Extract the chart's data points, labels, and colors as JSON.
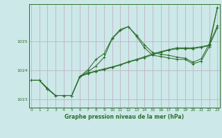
{
  "title": "Graphe pression niveau de la mer (hPa)",
  "bg_color": "#cce8e8",
  "grid_color": "#c0a8c0",
  "line_color": "#2d6e2d",
  "ylim": [
    1022.7,
    1026.3
  ],
  "xlim": [
    -0.3,
    23.3
  ],
  "yticks": [
    1023,
    1024,
    1025
  ],
  "xticks": [
    0,
    1,
    2,
    3,
    4,
    5,
    6,
    7,
    8,
    9,
    10,
    11,
    12,
    13,
    14,
    15,
    16,
    17,
    18,
    19,
    20,
    21,
    22,
    23
  ],
  "series1": {
    "x": [
      0,
      1,
      2,
      3,
      4,
      5,
      6,
      7,
      8,
      9,
      10,
      11,
      12,
      13,
      14,
      15,
      16,
      17,
      18,
      19,
      20,
      21,
      22,
      23
    ],
    "y": [
      1023.65,
      1023.65,
      1023.35,
      1023.12,
      1023.12,
      1023.12,
      1023.78,
      1023.9,
      1023.98,
      1024.05,
      1024.12,
      1024.2,
      1024.3,
      1024.38,
      1024.47,
      1024.57,
      1024.65,
      1024.72,
      1024.78,
      1024.78,
      1024.78,
      1024.82,
      1024.88,
      1025.55
    ]
  },
  "series2": {
    "x": [
      0,
      1,
      2,
      3,
      4,
      5,
      6,
      7,
      8,
      9,
      10,
      11,
      12,
      13,
      14,
      15,
      16,
      17,
      18,
      19,
      20,
      21,
      22,
      23
    ],
    "y": [
      1023.65,
      1023.65,
      1023.38,
      1023.12,
      1023.12,
      1023.12,
      1023.78,
      1023.95,
      1024.15,
      1024.45,
      1025.1,
      1025.38,
      1025.52,
      1025.18,
      1024.78,
      1024.52,
      1024.48,
      1024.43,
      1024.38,
      1024.38,
      1024.22,
      1024.32,
      1024.82,
      1026.18
    ]
  },
  "series3": {
    "x": [
      0,
      1,
      2,
      3,
      4,
      5,
      6,
      7,
      8,
      9,
      10,
      11,
      12,
      13,
      14,
      15,
      16,
      17,
      18,
      19,
      20,
      21,
      22,
      23
    ],
    "y": [
      1023.65,
      1023.65,
      1023.35,
      1023.12,
      1023.12,
      1023.12,
      1023.78,
      1023.88,
      1023.96,
      1024.02,
      1024.1,
      1024.18,
      1024.28,
      1024.36,
      1024.44,
      1024.54,
      1024.62,
      1024.7,
      1024.75,
      1024.75,
      1024.75,
      1024.8,
      1024.85,
      1025.48
    ]
  },
  "series4": {
    "x": [
      0,
      1,
      2,
      3,
      4,
      5,
      6,
      7,
      8,
      9,
      10,
      11,
      12,
      13,
      14,
      15,
      16,
      17,
      18,
      19,
      20,
      21,
      22,
      23
    ],
    "y": [
      1023.65,
      1023.65,
      1023.35,
      1023.12,
      1023.12,
      1023.12,
      1023.78,
      1024.02,
      1024.38,
      1024.58,
      1025.12,
      1025.42,
      1025.52,
      1025.22,
      1024.88,
      1024.62,
      1024.56,
      1024.52,
      1024.46,
      1024.42,
      1024.28,
      1024.4,
      1024.92,
      1026.18
    ]
  }
}
